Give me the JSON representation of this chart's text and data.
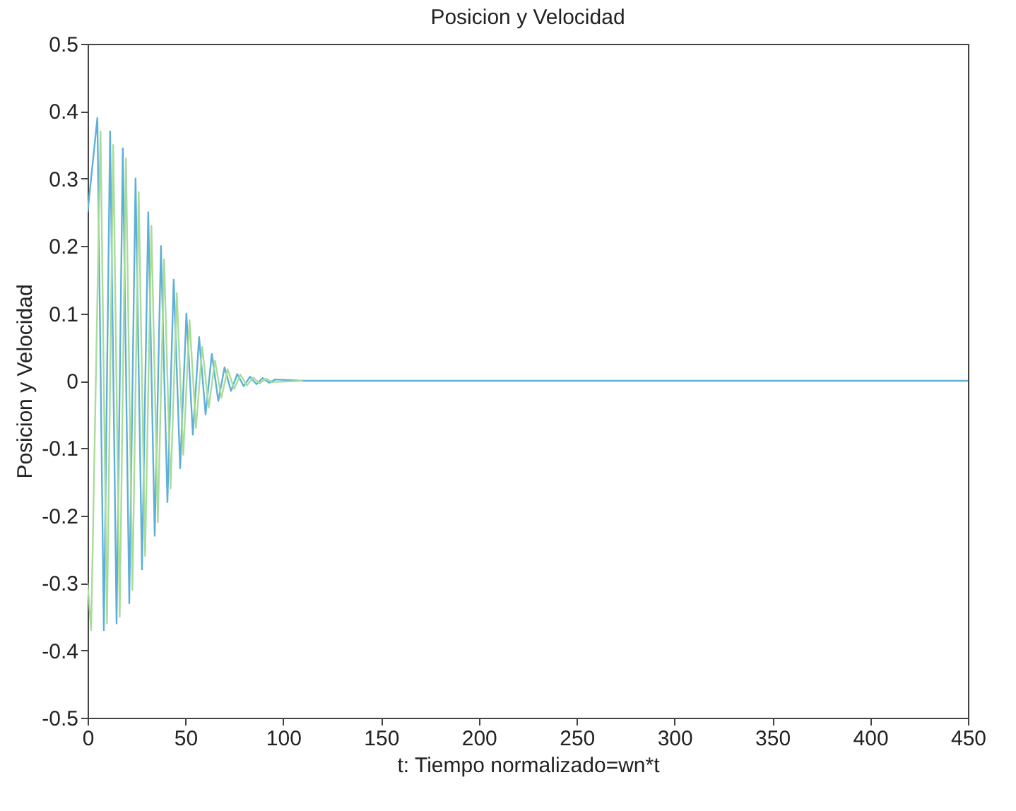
{
  "chart_data": {
    "type": "line",
    "title": "Posicion y Velocidad",
    "xlabel": "t: Tiempo normalizado=wn*t",
    "ylabel": "Posicion y Velocidad",
    "xlim": [
      0,
      450
    ],
    "xticks": [
      0,
      50,
      100,
      150,
      200,
      250,
      300,
      350,
      400,
      450
    ],
    "ylim": [
      -0.5,
      0.5
    ],
    "yticks": [
      -0.5,
      -0.4,
      -0.3,
      -0.2,
      -0.1,
      0,
      0.1,
      0.2,
      0.3,
      0.4,
      0.5
    ],
    "grid": false,
    "line_style": "solid",
    "series": [
      {
        "color": "#5fb0d8",
        "x": [
          0,
          5,
          8.3,
          11.5,
          14.8,
          18,
          21.3,
          24.5,
          27.8,
          31,
          34.3,
          37.5,
          40.8,
          44,
          47.3,
          50.5,
          53.8,
          57,
          60.3,
          63.5,
          66.8,
          70,
          73.3,
          76.5,
          79.8,
          83,
          86.3,
          89.5,
          92.8,
          96,
          110,
          200,
          300,
          450
        ],
        "values": [
          0.25,
          0.39,
          -0.37,
          0.37,
          -0.36,
          0.345,
          -0.33,
          0.3,
          -0.28,
          0.25,
          -0.23,
          0.2,
          -0.18,
          0.15,
          -0.13,
          0.1,
          -0.08,
          0.065,
          -0.05,
          0.04,
          -0.03,
          0.02,
          -0.015,
          0.01,
          -0.008,
          0.006,
          -0.005,
          0.004,
          -0.003,
          0.002,
          0,
          0,
          0,
          0
        ]
      },
      {
        "color": "#a8dc9a",
        "x": [
          0,
          1.8,
          6.6,
          9.9,
          13.1,
          16.4,
          19.6,
          22.9,
          26.1,
          29.4,
          32.6,
          35.9,
          39.1,
          42.4,
          45.6,
          48.9,
          52.1,
          55.4,
          58.6,
          61.9,
          65.1,
          68.4,
          71.6,
          74.9,
          78.1,
          81.4,
          84.6,
          87.9,
          91.1,
          94.4,
          110
        ],
        "values": [
          -0.3,
          -0.37,
          0.37,
          -0.36,
          0.35,
          -0.35,
          0.33,
          -0.31,
          0.28,
          -0.26,
          0.23,
          -0.21,
          0.18,
          -0.16,
          0.13,
          -0.11,
          0.09,
          -0.07,
          0.05,
          -0.04,
          0.03,
          -0.025,
          0.017,
          -0.012,
          0.009,
          -0.007,
          0.005,
          -0.004,
          0.003,
          -0.002,
          0
        ]
      }
    ]
  }
}
